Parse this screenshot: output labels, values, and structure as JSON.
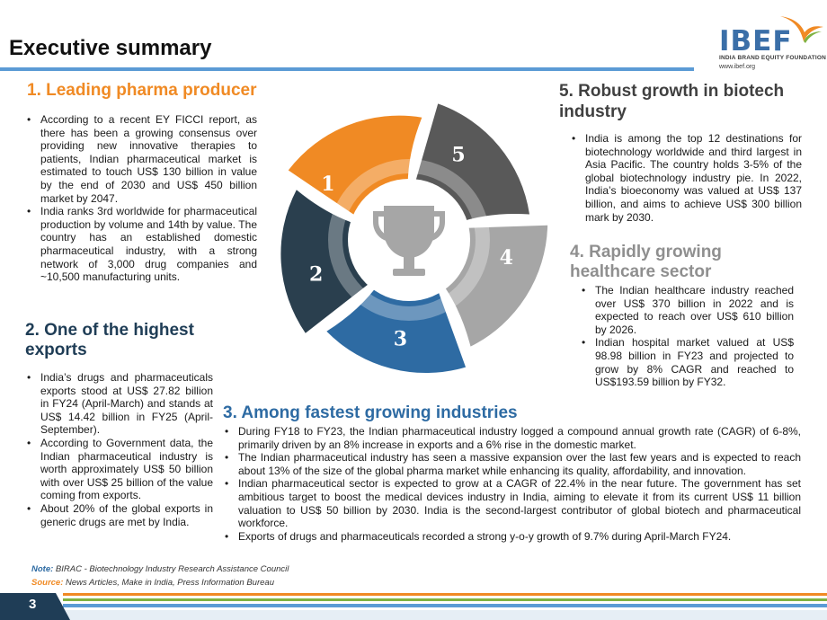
{
  "header": {
    "title": "Executive summary",
    "logo_text": "IBEF",
    "logo_subtitle": "INDIA BRAND EQUITY FOUNDATION",
    "logo_website": "www.ibef.org"
  },
  "sections": {
    "s1": {
      "heading": "1. Leading pharma producer",
      "bullets": [
        "According to a recent EY FICCI report, as there has been a growing consensus over providing new innovative therapies to patients, Indian pharmaceutical market is estimated to touch US$ 130 billion in value by the end of 2030 and US$ 450 billion market by 2047.",
        "India ranks 3rd worldwide for pharmaceutical production by volume and 14th by value. The country has an established domestic pharmaceutical industry, with a strong network of 3,000 drug companies and ~10,500 manufacturing units."
      ]
    },
    "s2": {
      "heading": "2. One of the highest exports",
      "bullets": [
        "India’s drugs and pharmaceuticals exports stood at US$ 27.82 billion in FY24 (April-March) and stands at US$ 14.42 billion in FY25 (April-September).",
        "According to Government data, the Indian pharmaceutical industry is worth approximately US$ 50 billion with over US$ 25 billion of the value coming from exports.",
        "About 20% of the global exports in generic drugs are met by India."
      ]
    },
    "s3": {
      "heading": "3. Among fastest growing industries",
      "bullets": [
        "During FY18 to FY23, the Indian pharmaceutical industry logged a compound annual growth rate (CAGR) of 6-8%, primarily driven by an 8% increase in exports and a 6% rise in the domestic market.",
        "The Indian pharmaceutical industry has seen a massive expansion over the last few years and is expected to reach about 13% of the size of the global pharma market while enhancing its quality, affordability, and innovation.",
        "Indian pharmaceutical sector is expected to grow at a CAGR of 22.4% in the near future. The government has set ambitious target to boost the medical devices industry in India, aiming to elevate it from its current US$ 11 billion valuation to US$ 50 billion by 2030. India is the second-largest contributor of global biotech and pharmaceutical workforce.",
        "Exports of drugs and pharmaceuticals recorded a strong y-o-y growth of 9.7% during April-March FY24."
      ]
    },
    "s4": {
      "heading": "4. Rapidly growing healthcare sector",
      "bullets": [
        "The Indian healthcare industry reached over US$ 370 billion in 2022 and is expected to reach over US$ 610 billion by 2026.",
        "Indian hospital market valued at US$ 98.98 billion in FY23 and projected to grow by 8% CAGR and reached to US$193.59 billion by FY32."
      ]
    },
    "s5": {
      "heading": "5. Robust growth in biotech industry",
      "bullets": [
        "India is among the top 12 destinations for biotechnology worldwide and third largest in Asia Pacific. The country holds 3-5% of the global biotechnology industry pie. In 2022, India’s bioeconomy was valued at US$ 137 billion, and aims to achieve US$ 300 billion mark by 2030."
      ]
    }
  },
  "wheel": {
    "petals": [
      {
        "number": "1",
        "color": "#f08a24"
      },
      {
        "number": "2",
        "color": "#2a3f4e"
      },
      {
        "number": "3",
        "color": "#2e6ba3"
      },
      {
        "number": "4",
        "color": "#a6a6a6"
      },
      {
        "number": "5",
        "color": "#595959"
      }
    ],
    "center_icon": "trophy-icon"
  },
  "footer": {
    "note_label": "Note:",
    "note_text": "BIRAC - Biotechnology Industry Research Assistance Council",
    "source_label": "Source:",
    "source_text": "News Articles, Make in India, Press Information Bureau",
    "page_number": "3"
  },
  "colors": {
    "accent_orange": "#f08a24",
    "navy": "#1f3d56",
    "blue": "#2e6ba3",
    "rule_blue": "#5b9bd5",
    "stripe_green": "#7fb241"
  }
}
